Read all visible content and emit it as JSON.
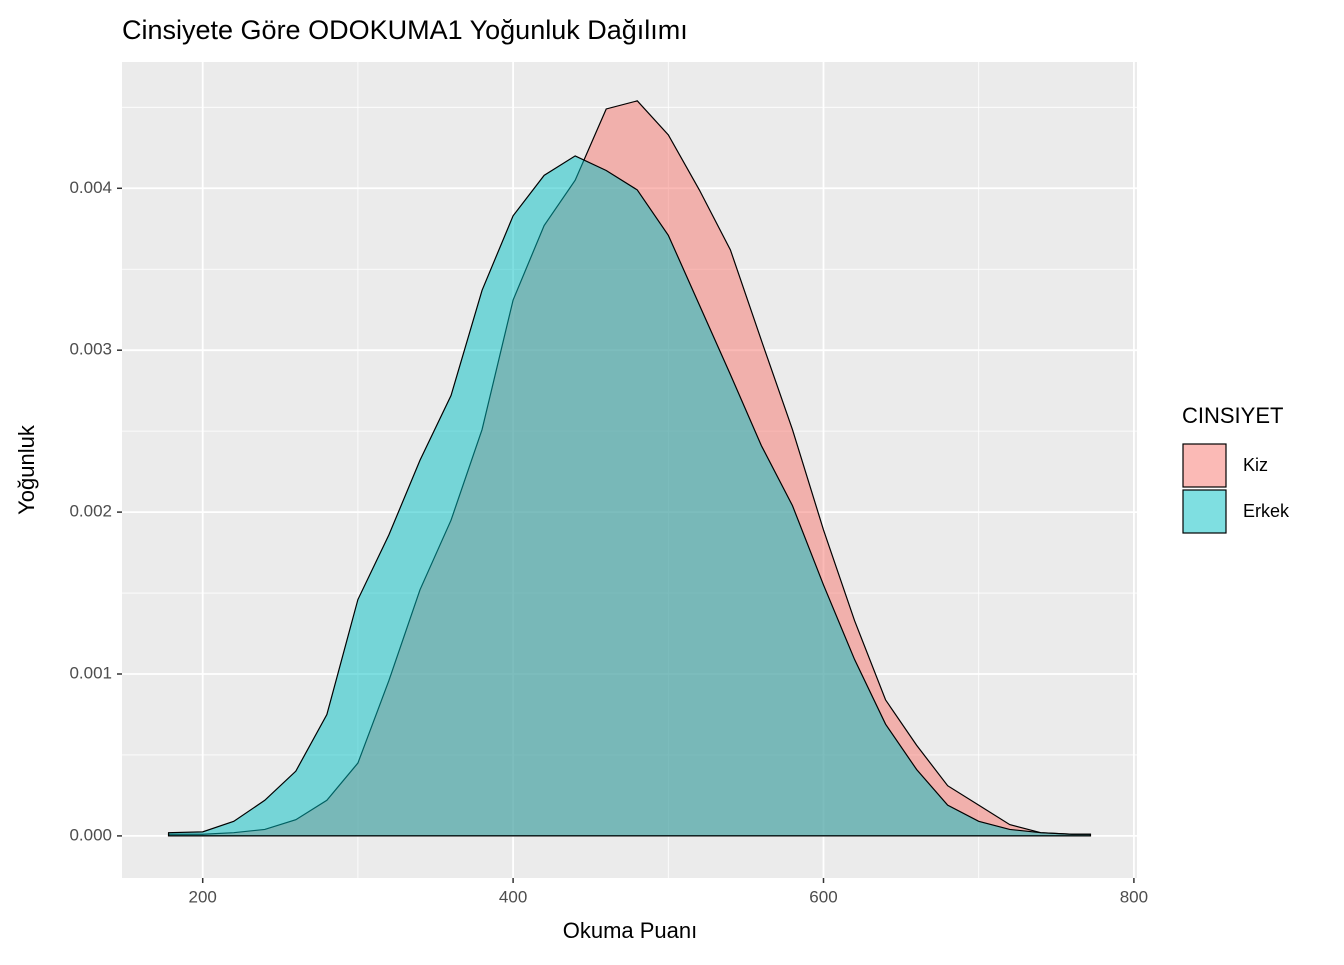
{
  "chart_data": {
    "type": "area",
    "title": "Cinsiyete Göre ODOKUMA1 Yoğunluk Dağılımı",
    "x_label": "Okuma Puanı",
    "y_label": "Yoğunluk",
    "legend_title": "CINSIYET",
    "legend": "right",
    "x": [
      178,
      200,
      220,
      240,
      260,
      280,
      300,
      320,
      340,
      360,
      380,
      400,
      420,
      440,
      460,
      480,
      500,
      520,
      540,
      560,
      580,
      600,
      620,
      640,
      660,
      680,
      700,
      720,
      740,
      760,
      772
    ],
    "series": [
      {
        "name": "Kiz",
        "color": "#F8766D",
        "values": [
          1e-05,
          1e-05,
          2e-05,
          4e-05,
          0.0001,
          0.00022,
          0.00045,
          0.00096,
          0.00152,
          0.00195,
          0.00251,
          0.00331,
          0.00377,
          0.00405,
          0.00449,
          0.00454,
          0.00433,
          0.00399,
          0.00362,
          0.00306,
          0.00251,
          0.00189,
          0.00133,
          0.00084,
          0.00056,
          0.00031,
          0.00019,
          7e-05,
          2e-05,
          1e-05,
          1e-05
        ]
      },
      {
        "name": "Erkek",
        "color": "#00BFC4",
        "values": [
          2e-05,
          2.5e-05,
          9e-05,
          0.00022,
          0.0004,
          0.00075,
          0.00146,
          0.00186,
          0.00232,
          0.00272,
          0.00337,
          0.00383,
          0.00408,
          0.0042,
          0.00411,
          0.00399,
          0.00371,
          0.00328,
          0.00285,
          0.00241,
          0.00204,
          0.00155,
          0.00109,
          0.00069,
          0.00041,
          0.00019,
          9e-05,
          4e-05,
          2e-05,
          1e-05,
          1e-05
        ]
      }
    ],
    "alpha": 0.5,
    "xlim": [
      148,
      802
    ],
    "xticks": [
      200,
      400,
      600,
      800
    ],
    "ylim": [
      -0.00026,
      0.00478
    ],
    "yticks": [
      {
        "value": 0,
        "label": "0.000"
      },
      0.001,
      0.002,
      0.003,
      0.004
    ],
    "grid": true
  }
}
